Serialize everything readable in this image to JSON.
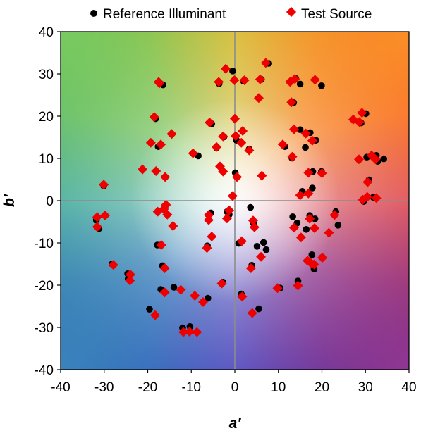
{
  "chart_data": {
    "type": "scatter",
    "title": "",
    "xlabel": "a′",
    "ylabel": "b′",
    "xlim": [
      -40,
      40
    ],
    "ylim": [
      -40,
      40
    ],
    "x_ticks": [
      "-40",
      "-30",
      "-20",
      "-10",
      "0",
      "10",
      "20",
      "30",
      "40"
    ],
    "y_ticks": [
      "40",
      "30",
      "20",
      "10",
      "0",
      "-10",
      "-20",
      "-30",
      "-40"
    ],
    "legend_position": "top",
    "grid": false,
    "series": [
      {
        "name": "Reference Illuminant",
        "marker": "circle",
        "color": "#000000",
        "points": [
          [
            -31.8,
            -4.6
          ],
          [
            -31.2,
            -6.6
          ],
          [
            -30.1,
            3.5
          ],
          [
            -28.2,
            -15
          ],
          [
            -24.6,
            -17.3
          ],
          [
            -24.5,
            -18.5
          ],
          [
            -19.6,
            -25.7
          ],
          [
            -18.2,
            19.4
          ],
          [
            -17.8,
            -10.5
          ],
          [
            -17.6,
            12.8
          ],
          [
            -17,
            -21
          ],
          [
            -16.5,
            27.4
          ],
          [
            -16.6,
            -15.4
          ],
          [
            -14,
            -20.5
          ],
          [
            -12,
            -30.1
          ],
          [
            -10.3,
            -29.8
          ],
          [
            -8.4,
            10.6
          ],
          [
            -6.2,
            -23.1
          ],
          [
            -6.3,
            -10.7
          ],
          [
            -5.5,
            -2.9
          ],
          [
            -5.3,
            18.2
          ],
          [
            -4.2,
            12.5
          ],
          [
            -3.6,
            27.7
          ],
          [
            -2.7,
            -19.3
          ],
          [
            -2.5,
            15.1
          ],
          [
            -1.8,
            -2.6
          ],
          [
            -1.3,
            -3.3
          ],
          [
            -0.5,
            30.7
          ],
          [
            0.1,
            6.6
          ],
          [
            0.4,
            14.3
          ],
          [
            0.9,
            -10.1
          ],
          [
            1.5,
            -22.1
          ],
          [
            2,
            28.3
          ],
          [
            3.3,
            12.2
          ],
          [
            3.6,
            -1.6
          ],
          [
            3.9,
            -15.3
          ],
          [
            4.3,
            -5.4
          ],
          [
            5.1,
            -10.8
          ],
          [
            5.5,
            -25.6
          ],
          [
            6.1,
            28.7
          ],
          [
            6.6,
            -9.9
          ],
          [
            7.2,
            -11.6
          ],
          [
            7.8,
            32.5
          ],
          [
            10.4,
            -20.7
          ],
          [
            11.5,
            12.8
          ],
          [
            12.6,
            28.1
          ],
          [
            13.1,
            10.1
          ],
          [
            13.3,
            -3.8
          ],
          [
            13.5,
            23.2
          ],
          [
            14,
            28.9
          ],
          [
            14.3,
            -5.3
          ],
          [
            14.5,
            -19
          ],
          [
            15,
            16.8
          ],
          [
            15,
            27.6
          ],
          [
            15.5,
            2.2
          ],
          [
            16.2,
            12.6
          ],
          [
            16.4,
            -6.8
          ],
          [
            17.2,
            -3.5
          ],
          [
            17.3,
            16.1
          ],
          [
            17.7,
            -12.8
          ],
          [
            17.8,
            3
          ],
          [
            17.9,
            6.9
          ],
          [
            18.2,
            -16.2
          ],
          [
            18.4,
            -4.3
          ],
          [
            18.6,
            14.3
          ],
          [
            19.9,
            27.2
          ],
          [
            19.9,
            6.9
          ],
          [
            20.1,
            -13.4
          ],
          [
            23.2,
            -2.6
          ],
          [
            23.7,
            -5.8
          ],
          [
            28.5,
            9.7
          ],
          [
            29,
            18.4
          ],
          [
            29.6,
            -0.2
          ],
          [
            30.1,
            20.6
          ],
          [
            30.3,
            10.3
          ],
          [
            30.8,
            4.9
          ],
          [
            31.8,
            0.8
          ],
          [
            32.5,
            10.7
          ],
          [
            32.8,
            9.3
          ],
          [
            34.2,
            9.9
          ]
        ]
      },
      {
        "name": "Test Source",
        "marker": "diamond",
        "color": "#ee0000",
        "points": [
          [
            -31.6,
            -3.9
          ],
          [
            -31.6,
            -6.2
          ],
          [
            -30.1,
            3.8
          ],
          [
            -29.8,
            -3.5
          ],
          [
            -27.9,
            -15.2
          ],
          [
            -24,
            -17.5
          ],
          [
            -24.1,
            -18.9
          ],
          [
            -21.2,
            7.4
          ],
          [
            -19.3,
            13.7
          ],
          [
            -18.5,
            19.8
          ],
          [
            -18.3,
            -27.1
          ],
          [
            -18.1,
            7
          ],
          [
            -17.7,
            -2.6
          ],
          [
            -17.5,
            28.1
          ],
          [
            -17.3,
            27.8
          ],
          [
            -17,
            13.3
          ],
          [
            -16.9,
            -10.5
          ],
          [
            -16.3,
            -2
          ],
          [
            -16.1,
            -21.7
          ],
          [
            -16.1,
            -16
          ],
          [
            -16,
            5.6
          ],
          [
            -15.8,
            -1
          ],
          [
            -15.5,
            -3.3
          ],
          [
            -14.5,
            15.8
          ],
          [
            -14.2,
            -6
          ],
          [
            -12.4,
            -21.1
          ],
          [
            -11.8,
            -31.1
          ],
          [
            -10.4,
            -31
          ],
          [
            -9.6,
            11.2
          ],
          [
            -9.2,
            -22.5
          ],
          [
            -8.7,
            -31.1
          ],
          [
            -7.3,
            -24
          ],
          [
            -6.4,
            -11.2
          ],
          [
            -6,
            -4.6
          ],
          [
            -6,
            -3.4
          ],
          [
            -5.8,
            18.5
          ],
          [
            -5.3,
            -8.5
          ],
          [
            -4.2,
            12.7
          ],
          [
            -3.7,
            28.1
          ],
          [
            -3.4,
            8.1
          ],
          [
            -3,
            -19.6
          ],
          [
            -2.7,
            15.2
          ],
          [
            -2.7,
            6.9
          ],
          [
            -2.1,
            31.2
          ],
          [
            -1.8,
            -4.2
          ],
          [
            -1.3,
            -2.3
          ],
          [
            -0.5,
            1.1
          ],
          [
            -0.1,
            28.5
          ],
          [
            0,
            19.4
          ],
          [
            0.2,
            15.3
          ],
          [
            0.5,
            5.6
          ],
          [
            1.5,
            13.7
          ],
          [
            1.6,
            -9.6
          ],
          [
            1.8,
            16.5
          ],
          [
            1.7,
            -22.7
          ],
          [
            2.2,
            28.5
          ],
          [
            3.3,
            11.9
          ],
          [
            3.7,
            -16
          ],
          [
            4,
            -26.6
          ],
          [
            4.2,
            -4.7
          ],
          [
            4.5,
            -6.3
          ],
          [
            5.5,
            24.3
          ],
          [
            5.8,
            28.7
          ],
          [
            6,
            -13.3
          ],
          [
            6.2,
            5.9
          ],
          [
            7.1,
            32.6
          ],
          [
            9.8,
            -20.7
          ],
          [
            11,
            13.3
          ],
          [
            12.7,
            28.1
          ],
          [
            13,
            23.3
          ],
          [
            13.2,
            10.4
          ],
          [
            13.6,
            16.9
          ],
          [
            13.6,
            -6.4
          ],
          [
            13.8,
            28.8
          ],
          [
            14.5,
            -20.1
          ],
          [
            15,
            1.3
          ],
          [
            15.2,
            -8.7
          ],
          [
            16.3,
            15.9
          ],
          [
            16.7,
            -14.2
          ],
          [
            16.9,
            1.7
          ],
          [
            16.9,
            6.6
          ],
          [
            17.2,
            -4.3
          ],
          [
            17.5,
            -14.8
          ],
          [
            17.8,
            14.2
          ],
          [
            18.2,
            -15.1
          ],
          [
            18.3,
            -6.5
          ],
          [
            18.4,
            28.6
          ],
          [
            20,
            6.5
          ],
          [
            20.1,
            -13.5
          ],
          [
            21.6,
            -7.6
          ],
          [
            22.9,
            -3.4
          ],
          [
            27.2,
            19.2
          ],
          [
            28.5,
            9.8
          ],
          [
            28.6,
            18.6
          ],
          [
            29.2,
            20.8
          ],
          [
            29.4,
            0.2
          ],
          [
            30.4,
            0.9
          ],
          [
            30.5,
            4.4
          ],
          [
            31.4,
            10.7
          ],
          [
            32.3,
            9.8
          ],
          [
            32.5,
            0.6
          ]
        ]
      }
    ]
  }
}
